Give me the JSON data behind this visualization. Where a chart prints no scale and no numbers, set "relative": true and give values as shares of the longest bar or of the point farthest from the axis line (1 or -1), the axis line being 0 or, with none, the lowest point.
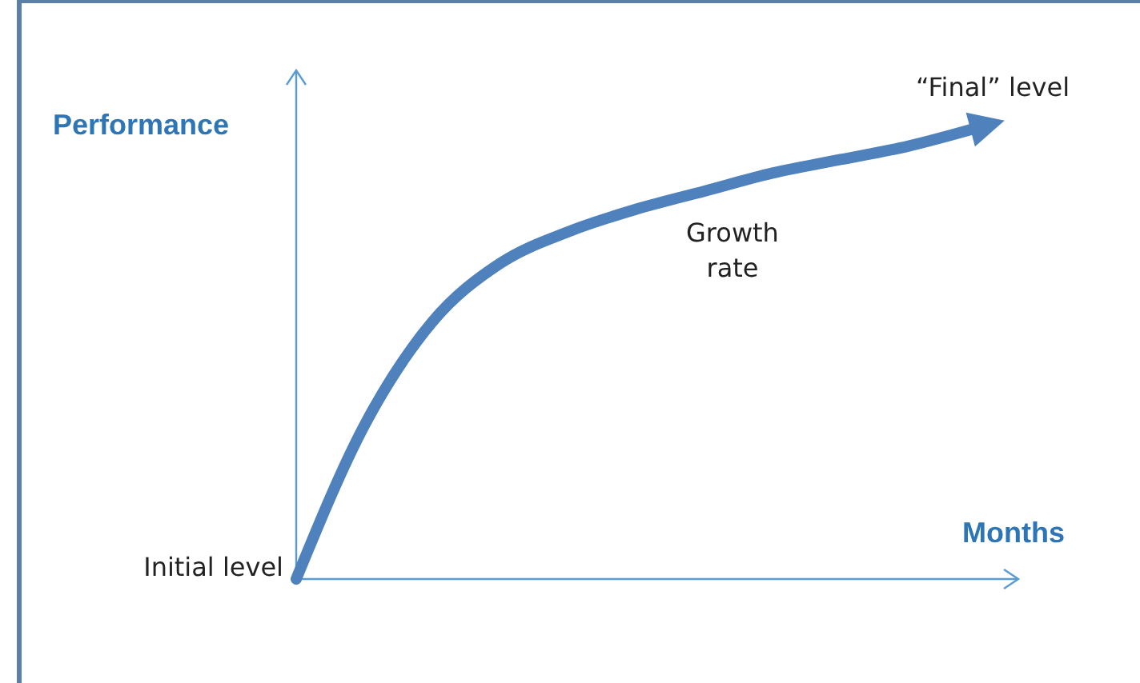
{
  "chart_data": {
    "type": "line",
    "relative": true,
    "xlabel": "Months",
    "ylabel": "Performance",
    "categories": [
      null,
      null,
      null,
      null,
      null,
      null,
      null,
      null,
      null,
      null,
      null
    ],
    "series": [
      {
        "color": "#4f81bd",
        "values": [
          0,
          0.34,
          0.57,
          0.7,
          0.77,
          0.82,
          0.86,
          0.9,
          0.93,
          0.96,
          1
        ]
      }
    ],
    "annotations": [
      "Initial level",
      "Growth rate",
      "“Final” level"
    ],
    "marker": "none",
    "line_style": "solid"
  }
}
